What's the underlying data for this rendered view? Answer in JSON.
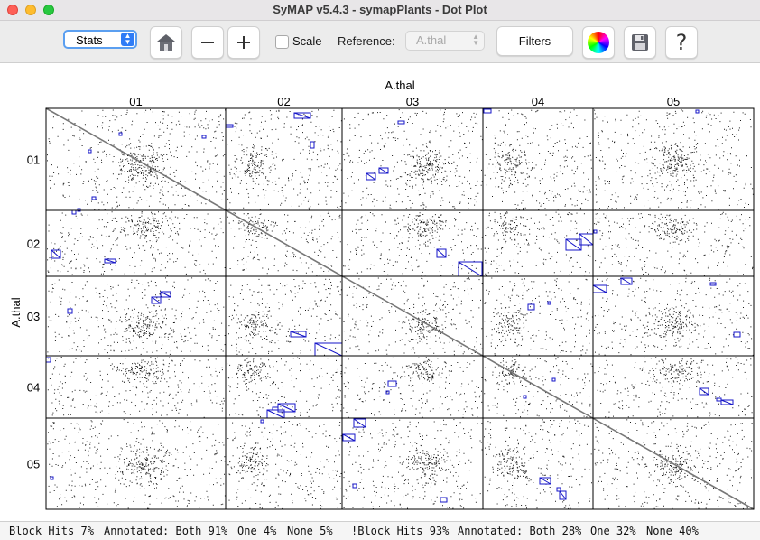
{
  "window": {
    "title": "SyMAP v5.4.3 - symapPlants - Dot Plot"
  },
  "toolbar": {
    "stats_select_value": "Stats",
    "scale_label": "Scale",
    "scale_checked": false,
    "reference_label": "Reference:",
    "reference_value": "A.thal",
    "filters_label": "Filters"
  },
  "plot": {
    "x_title": "A.thal",
    "y_title": "A.thal",
    "x_chromosomes": [
      "01",
      "02",
      "03",
      "04",
      "05"
    ],
    "y_chromosomes": [
      "01",
      "02",
      "03",
      "04",
      "05"
    ]
  },
  "status": {
    "block_hits": "Block Hits 7%",
    "annotated1": "Annotated: Both 91%",
    "one1": "One 4%",
    "none1": "None 5%",
    "not_block_hits": "!Block Hits 93%",
    "annotated2": "Annotated: Both 28%",
    "one2": "One 32%",
    "none2": "None 40%"
  },
  "colors": {
    "block": "#1515c8",
    "diagonal": "#777777",
    "select_focus": "#5b9ff0"
  }
}
